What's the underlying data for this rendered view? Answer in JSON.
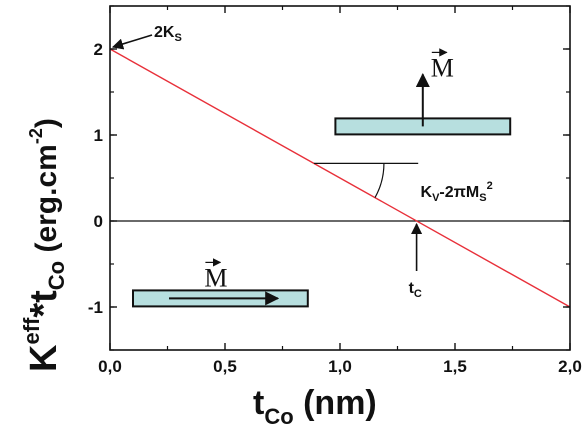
{
  "chart_data": {
    "type": "line",
    "xlabel": {
      "main": "t",
      "sub": "Co",
      "unit": " (nm)"
    },
    "ylabel": {
      "main": "K",
      "sup": "eff",
      "star": "*t",
      "sub": "Co",
      "unit": " (erg.cm",
      "unit_sup": "-2",
      "unit_close": ")"
    },
    "xlim": [
      0,
      2.0
    ],
    "ylim": [
      -1.5,
      2.5
    ],
    "x_ticks": [
      {
        "value": 0.0,
        "label": "0,0"
      },
      {
        "value": 0.5,
        "label": "0,5"
      },
      {
        "value": 1.0,
        "label": "1,0"
      },
      {
        "value": 1.5,
        "label": "1,5"
      },
      {
        "value": 2.0,
        "label": "2,0"
      }
    ],
    "y_ticks": [
      {
        "value": -1,
        "label": "-1"
      },
      {
        "value": 0,
        "label": "0"
      },
      {
        "value": 1,
        "label": "1"
      },
      {
        "value": 2,
        "label": "2"
      }
    ],
    "zero_line": true,
    "grid": false,
    "series": [
      {
        "color": "#e8303a",
        "x": [
          0.0,
          2.0
        ],
        "y": [
          2.0,
          -1.0
        ]
      }
    ],
    "annotations": {
      "intercept": {
        "main": "2K",
        "sub": "S",
        "x": 0.0,
        "y": 2.0
      },
      "slope": {
        "main": "K",
        "sub": "V",
        "rest": "-2πM",
        "sub2": "S",
        "sup": "2"
      },
      "crossing": {
        "main": "t",
        "sub": "C",
        "x": 1.333,
        "y": 0.0
      }
    },
    "insets": [
      {
        "label": "M",
        "arrow_direction": "up",
        "fill": "#b7dfdf",
        "x_range": [
          0.98,
          1.74
        ],
        "y_center": 1.1
      },
      {
        "label": "M",
        "arrow_direction": "right",
        "fill": "#b7dfdf",
        "x_range": [
          0.1,
          0.86
        ],
        "y_center": -0.9
      }
    ]
  }
}
